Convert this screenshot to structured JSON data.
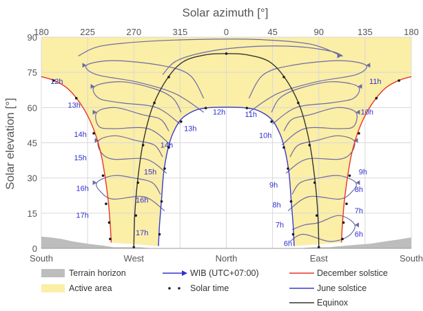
{
  "chart_data": {
    "type": "line",
    "title": "",
    "top_axis_label": "Solar azimuth [°]",
    "ylabel": "Solar elevation [°]",
    "xlabel": "",
    "x_axis": "azimuth, centred on North (0°)",
    "xlim": [
      180,
      540
    ],
    "ylim": [
      0,
      90
    ],
    "top_ticks": [
      {
        "az": 180,
        "label": "180"
      },
      {
        "az": 225,
        "label": "225"
      },
      {
        "az": 270,
        "label": "270"
      },
      {
        "az": 315,
        "label": "315"
      },
      {
        "az": 360,
        "label": "0"
      },
      {
        "az": 405,
        "label": "45"
      },
      {
        "az": 450,
        "label": "90"
      },
      {
        "az": 495,
        "label": "135"
      },
      {
        "az": 540,
        "label": "180"
      }
    ],
    "bottom_ticks": [
      {
        "az": 180,
        "label": "South"
      },
      {
        "az": 270,
        "label": "West"
      },
      {
        "az": 360,
        "label": "North"
      },
      {
        "az": 450,
        "label": "East"
      },
      {
        "az": 540,
        "label": "South"
      }
    ],
    "y_ticks": [
      0,
      15,
      30,
      45,
      60,
      75,
      90
    ],
    "grid": true,
    "legend": {
      "placement": "bottom",
      "items": [
        {
          "label": "Terrain horizon",
          "kind": "patch",
          "color": "#bdbdbd"
        },
        {
          "label": "Active area",
          "kind": "patch",
          "color": "#fbeea6"
        },
        {
          "label": "WIB (UTC+07:00)",
          "kind": "arrow",
          "color": "#3030d0"
        },
        {
          "label": "Solar time",
          "kind": "dots",
          "color": "#222222"
        },
        {
          "label": "December solstice",
          "kind": "line",
          "color": "#e8332a"
        },
        {
          "label": "June solstice",
          "kind": "line",
          "color": "#3a3acc"
        },
        {
          "label": "Equinox",
          "kind": "line",
          "color": "#333333"
        }
      ]
    },
    "colors": {
      "active_area": "#fbeea6",
      "terrain": "#bdbdbd",
      "december": "#e8332a",
      "june": "#3a3acc",
      "equinox": "#333333",
      "analemma": "#6a6aa8",
      "hour_label": "#3030d0",
      "grid": "#d8d8d8"
    },
    "terrain_horizon": [
      [
        180,
        5
      ],
      [
        190,
        4.6
      ],
      [
        200,
        4
      ],
      [
        210,
        3
      ],
      [
        225,
        2
      ],
      [
        240,
        1.2
      ],
      [
        250,
        0.5
      ],
      [
        262,
        0.5
      ],
      [
        275,
        0.5
      ],
      [
        290,
        0
      ],
      [
        430,
        0
      ],
      [
        445,
        0.5
      ],
      [
        460,
        0.5
      ],
      [
        472,
        1
      ],
      [
        485,
        1.5
      ],
      [
        500,
        2
      ],
      [
        515,
        3
      ],
      [
        528,
        3.8
      ],
      [
        540,
        4.7
      ]
    ],
    "series": [
      {
        "name": "December solstice",
        "points": [
          [
            180,
            73.2
          ],
          [
            192,
            71.6
          ],
          [
            204,
            68.7
          ],
          [
            214,
            64.1
          ],
          [
            224,
            57.4
          ],
          [
            232,
            49.4
          ],
          [
            238,
            40.4
          ],
          [
            242,
            30.6
          ],
          [
            245,
            20.6
          ],
          [
            247,
            10.5
          ],
          [
            248,
            2.5
          ],
          [
            472,
            2.5
          ],
          [
            473,
            10.5
          ],
          [
            475,
            20.6
          ],
          [
            478,
            30.6
          ],
          [
            482,
            40.4
          ],
          [
            488,
            49.4
          ],
          [
            496,
            57.4
          ],
          [
            506,
            64.1
          ],
          [
            516,
            68.7
          ],
          [
            528,
            71.6
          ],
          [
            540,
            73.2
          ]
        ]
      },
      {
        "name": "June solstice",
        "points": [
          [
            294,
            1
          ],
          [
            295,
            10
          ],
          [
            297,
            21
          ],
          [
            299,
            32
          ],
          [
            303,
            42
          ],
          [
            308,
            49
          ],
          [
            316,
            55
          ],
          [
            328,
            58.5
          ],
          [
            340,
            59.8
          ],
          [
            360,
            60.2
          ],
          [
            380,
            59.8
          ],
          [
            392,
            58.5
          ],
          [
            404,
            55
          ],
          [
            412,
            49
          ],
          [
            417,
            42
          ],
          [
            421,
            32
          ],
          [
            423,
            21
          ],
          [
            425,
            10
          ],
          [
            426,
            1
          ]
        ]
      },
      {
        "name": "Equinox",
        "points": [
          [
            270,
            1
          ],
          [
            271,
            15
          ],
          [
            274,
            30
          ],
          [
            279,
            45
          ],
          [
            288,
            60
          ],
          [
            302,
            72
          ],
          [
            318,
            79.5
          ],
          [
            340,
            82.5
          ],
          [
            360,
            83
          ],
          [
            380,
            82.5
          ],
          [
            402,
            79.5
          ],
          [
            418,
            72
          ],
          [
            432,
            60
          ],
          [
            441,
            45
          ],
          [
            446,
            30
          ],
          [
            449,
            15
          ],
          [
            450,
            1
          ]
        ]
      }
    ],
    "solar_time_dots": {
      "December solstice": [
        [
          192,
          71.5
        ],
        [
          214,
          64
        ],
        [
          231,
          49
        ],
        [
          240,
          31
        ],
        [
          243,
          19
        ],
        [
          246,
          11
        ],
        [
          247,
          4
        ],
        [
          473,
          4
        ],
        [
          474,
          11
        ],
        [
          477,
          19
        ],
        [
          480,
          31
        ],
        [
          489,
          49
        ],
        [
          506,
          64
        ],
        [
          528,
          71.5
        ]
      ],
      "June solstice": [
        [
          295,
          6
        ],
        [
          297,
          20
        ],
        [
          300,
          34
        ],
        [
          304,
          43
        ],
        [
          316,
          54
        ],
        [
          340,
          59.8
        ],
        [
          380,
          59.8
        ],
        [
          404,
          54
        ],
        [
          416,
          43
        ],
        [
          420,
          34
        ],
        [
          423,
          20
        ],
        [
          425,
          6
        ]
      ],
      "Equinox": [
        [
          270,
          0.5
        ],
        [
          272,
          14
        ],
        [
          274,
          28
        ],
        [
          279,
          44
        ],
        [
          290,
          62
        ],
        [
          304,
          73
        ],
        [
          360,
          83
        ],
        [
          416,
          73
        ],
        [
          430,
          62
        ],
        [
          441,
          44
        ],
        [
          446,
          28
        ],
        [
          448,
          14
        ],
        [
          450,
          0.5
        ]
      ]
    },
    "analemmas": [
      {
        "hour": "6h",
        "pts": [
          [
            422,
            3
          ],
          [
            435,
            6
          ],
          [
            460,
            3
          ],
          [
            478,
            5
          ],
          [
            485,
            10
          ],
          [
            470,
            14
          ],
          [
            450,
            11
          ],
          [
            436,
            10
          ],
          [
            424,
            8
          ]
        ],
        "dir": "left"
      },
      {
        "hour": "7h",
        "pts": [
          [
            420,
            16
          ],
          [
            440,
            22
          ],
          [
            470,
            21
          ],
          [
            482,
            24
          ],
          [
            486,
            28
          ],
          [
            470,
            31
          ],
          [
            450,
            30
          ],
          [
            432,
            28
          ],
          [
            424,
            23
          ]
        ],
        "dir": "left"
      },
      {
        "hour": "8h",
        "pts": [
          [
            418,
            32
          ],
          [
            438,
            38
          ],
          [
            470,
            38
          ],
          [
            482,
            41
          ],
          [
            484,
            46
          ],
          [
            468,
            48
          ],
          [
            448,
            46
          ],
          [
            430,
            44
          ],
          [
            422,
            39
          ]
        ],
        "dir": "left"
      },
      {
        "hour": "9h",
        "pts": [
          [
            414,
            44
          ],
          [
            436,
            51
          ],
          [
            470,
            51
          ],
          [
            484,
            52
          ],
          [
            486,
            58
          ],
          [
            468,
            60
          ],
          [
            442,
            57
          ],
          [
            424,
            55
          ],
          [
            416,
            50
          ]
        ],
        "dir": "left"
      },
      {
        "hour": "10h",
        "pts": [
          [
            405,
            53
          ],
          [
            428,
            60
          ],
          [
            462,
            62
          ],
          [
            484,
            64
          ],
          [
            488,
            69
          ],
          [
            462,
            71
          ],
          [
            430,
            68
          ],
          [
            412,
            64
          ],
          [
            404,
            58
          ]
        ],
        "dir": "left"
      },
      {
        "hour": "11h",
        "pts": [
          [
            382,
            58
          ],
          [
            410,
            66
          ],
          [
            448,
            71
          ],
          [
            486,
            74
          ],
          [
            496,
            78
          ],
          [
            470,
            80
          ],
          [
            424,
            78
          ],
          [
            396,
            74
          ],
          [
            382,
            64
          ]
        ],
        "dir": "left"
      },
      {
        "hour": "12h",
        "pts": [
          [
            298,
            74
          ],
          [
            312,
            80
          ],
          [
            344,
            84
          ],
          [
            386,
            86
          ],
          [
            428,
            86
          ],
          [
            462,
            84
          ],
          [
            472,
            82
          ],
          [
            442,
            87
          ],
          [
            390,
            89
          ],
          [
            330,
            89
          ],
          [
            276,
            88
          ],
          [
            236,
            86
          ],
          [
            216,
            82
          ]
        ],
        "dir": "right"
      },
      {
        "hour": "13h",
        "pts": [
          [
            338,
            58
          ],
          [
            310,
            66
          ],
          [
            272,
            71
          ],
          [
            234,
            74
          ],
          [
            224,
            78
          ],
          [
            250,
            80
          ],
          [
            296,
            78
          ],
          [
            324,
            74
          ],
          [
            338,
            64
          ]
        ],
        "dir": "right"
      },
      {
        "hour": "14h",
        "pts": [
          [
            315,
            53
          ],
          [
            292,
            60
          ],
          [
            258,
            62
          ],
          [
            236,
            64
          ],
          [
            232,
            69
          ],
          [
            258,
            71
          ],
          [
            290,
            68
          ],
          [
            308,
            64
          ],
          [
            316,
            58
          ]
        ],
        "dir": "right"
      },
      {
        "hour": "15h",
        "pts": [
          [
            306,
            44
          ],
          [
            284,
            51
          ],
          [
            250,
            51
          ],
          [
            236,
            52
          ],
          [
            234,
            58
          ],
          [
            252,
            60
          ],
          [
            278,
            57
          ],
          [
            296,
            55
          ],
          [
            304,
            50
          ]
        ],
        "dir": "right"
      },
      {
        "hour": "16h",
        "pts": [
          [
            302,
            32
          ],
          [
            282,
            38
          ],
          [
            250,
            38
          ],
          [
            238,
            41
          ],
          [
            236,
            46
          ],
          [
            252,
            48
          ],
          [
            272,
            46
          ],
          [
            290,
            44
          ],
          [
            298,
            39
          ]
        ],
        "dir": "right"
      },
      {
        "hour": "17h",
        "pts": [
          [
            300,
            16
          ],
          [
            280,
            22
          ],
          [
            250,
            21
          ],
          [
            238,
            24
          ],
          [
            234,
            28
          ],
          [
            250,
            31
          ],
          [
            270,
            30
          ],
          [
            288,
            28
          ],
          [
            296,
            23
          ]
        ],
        "dir": "right"
      }
    ],
    "hour_labels": [
      {
        "text": "6h",
        "az": 420,
        "el": 1
      },
      {
        "text": "6h",
        "az": 489,
        "el": 5
      },
      {
        "text": "7h",
        "az": 412,
        "el": 9
      },
      {
        "text": "7h",
        "az": 489,
        "el": 15
      },
      {
        "text": "8h",
        "az": 409,
        "el": 17.5
      },
      {
        "text": "8h",
        "az": 489,
        "el": 24
      },
      {
        "text": "9h",
        "az": 406,
        "el": 26
      },
      {
        "text": "9h",
        "az": 493,
        "el": 31.5
      },
      {
        "text": "10h",
        "az": 398,
        "el": 47
      },
      {
        "text": "10h",
        "az": 497,
        "el": 57
      },
      {
        "text": "11h",
        "az": 384,
        "el": 56
      },
      {
        "text": "11h",
        "az": 505,
        "el": 70
      },
      {
        "text": "12h",
        "az": 353,
        "el": 57
      },
      {
        "text": "12h",
        "az": 195,
        "el": 70
      },
      {
        "text": "13h",
        "az": 325,
        "el": 50
      },
      {
        "text": "13h",
        "az": 212,
        "el": 60
      },
      {
        "text": "14h",
        "az": 302,
        "el": 43
      },
      {
        "text": "14h",
        "az": 218,
        "el": 47.5
      },
      {
        "text": "15h",
        "az": 286,
        "el": 31.5
      },
      {
        "text": "15h",
        "az": 218,
        "el": 37.5
      },
      {
        "text": "16h",
        "az": 278,
        "el": 19.5
      },
      {
        "text": "16h",
        "az": 220,
        "el": 24.5
      },
      {
        "text": "17h",
        "az": 278,
        "el": 5.5
      },
      {
        "text": "17h",
        "az": 220,
        "el": 13
      }
    ]
  }
}
